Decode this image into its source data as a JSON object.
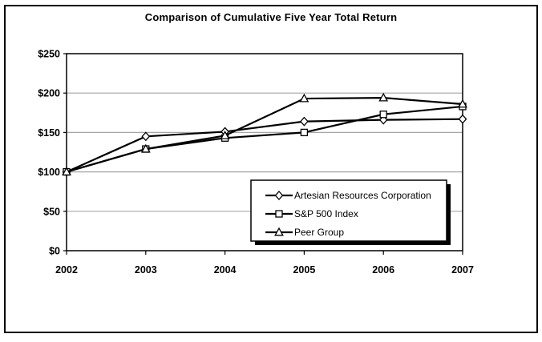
{
  "figure": {
    "title": "Comparison of Cumulative Five Year Total Return"
  },
  "chart_data": {
    "type": "line",
    "title": "Comparison of Cumulative Five Year Total Return",
    "x": [
      "2002",
      "2003",
      "2004",
      "2005",
      "2006",
      "2007"
    ],
    "series": [
      {
        "name": "Artesian Resources Corporation",
        "marker": "diamond",
        "values": [
          100,
          145,
          151,
          164,
          166,
          167
        ]
      },
      {
        "name": "S&P 500 Index",
        "marker": "square",
        "values": [
          100,
          129,
          143,
          150,
          173,
          183
        ]
      },
      {
        "name": "Peer Group",
        "marker": "triangle",
        "values": [
          100,
          129,
          146,
          193,
          194,
          186
        ]
      }
    ],
    "ylim": [
      0,
      250
    ],
    "yticks": [
      0,
      50,
      100,
      150,
      200,
      250
    ],
    "ytick_labels": [
      "$0",
      "$50",
      "$100",
      "$150",
      "$200",
      "$250"
    ],
    "xtick_labels": [
      "2002",
      "2003",
      "2004",
      "2005",
      "2006",
      "2007"
    ],
    "grid": true,
    "legend": {
      "position": "inside-bottom-right",
      "entries": [
        "Artesian Resources Corporation",
        "S&P 500 Index",
        "Peer Group"
      ]
    },
    "colors": {
      "line": "#000000",
      "grid": "#a6a6a6",
      "plot_border": "#000000",
      "marker_fill": "#ffffff",
      "background": "#ffffff",
      "text": "#000000",
      "legend_shadow": "#000000"
    }
  }
}
